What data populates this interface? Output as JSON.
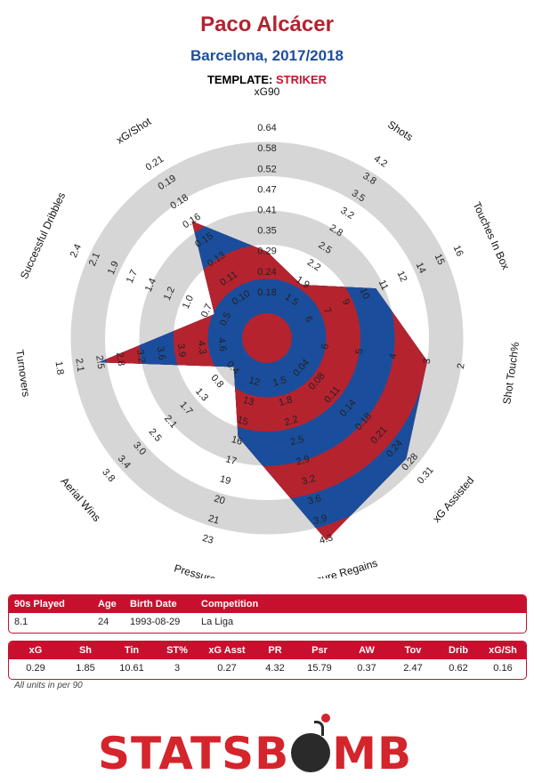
{
  "header": {
    "player": "Paco Alcácer",
    "team_season": "Barcelona, 2017/2018",
    "template_label": "TEMPLATE:",
    "template_value": "STRIKER"
  },
  "colors": {
    "red": "#b5232f",
    "blue": "#1a4e9c",
    "ring_grey": "#d6d6d6",
    "accent": "#c8102e"
  },
  "chart_data": {
    "type": "radar",
    "rings": 6,
    "axes": [
      {
        "name": "xG90",
        "ticks": [
          "0.18",
          "0.24",
          "0.29",
          "0.35",
          "0.41",
          "0.47",
          "0.52",
          "0.58",
          "0.64"
        ],
        "value": 0.29
      },
      {
        "name": "Shots",
        "ticks": [
          "1.5",
          "1.9",
          "2.2",
          "2.5",
          "2.8",
          "3.2",
          "3.5",
          "3.8",
          "4.2"
        ],
        "value": 1.85
      },
      {
        "name": "Touches In Box",
        "ticks": [
          "6",
          "7",
          "9",
          "10",
          "11",
          "12",
          "14",
          "15",
          "16"
        ],
        "value": 10.61
      },
      {
        "name": "Shot Touch%",
        "ticks": [
          "6",
          "5",
          "4",
          "3",
          "2"
        ],
        "value": 3
      },
      {
        "name": "xG Assisted",
        "ticks": [
          "0.04",
          "0.08",
          "0.11",
          "0.14",
          "0.18",
          "0.21",
          "0.24",
          "0.28",
          "0.31"
        ],
        "value": 0.27
      },
      {
        "name": "Pressure Regains",
        "ticks": [
          "1.5",
          "1.8",
          "2.2",
          "2.5",
          "2.9",
          "3.2",
          "3.6",
          "3.9",
          "4.3"
        ],
        "value": 4.32
      },
      {
        "name": "Pressures",
        "ticks": [
          "12",
          "13",
          "15",
          "16",
          "17",
          "19",
          "20",
          "21",
          "23"
        ],
        "value": 15.79
      },
      {
        "name": "Aerial Wins",
        "ticks": [
          "0.4",
          "0.8",
          "1.3",
          "1.7",
          "2.1",
          "2.5",
          "3.0",
          "3.4",
          "3.8"
        ],
        "value": 0.37
      },
      {
        "name": "Turnovers",
        "ticks": [
          "4.6",
          "4.3",
          "3.9",
          "3.6",
          "3.2",
          "2.8",
          "2.5",
          "2.1",
          "1.8"
        ],
        "value": 2.47
      },
      {
        "name": "Successful Dribbles",
        "ticks": [
          "0.5",
          "0.7",
          "1.0",
          "1.2",
          "1.4",
          "1.7",
          "1.9",
          "2.1",
          "2.4"
        ],
        "value": 0.62
      },
      {
        "name": "xG/Shot",
        "ticks": [
          "0.10",
          "0.11",
          "0.13",
          "0.15",
          "0.16",
          "0.18",
          "0.19",
          "0.21"
        ],
        "value": 0.16
      }
    ]
  },
  "info_table": {
    "headers": [
      "90s Played",
      "Age",
      "Birth Date",
      "Competition"
    ],
    "values": [
      "8.1",
      "24",
      "1993-08-29",
      "La Liga"
    ]
  },
  "stats_table": {
    "headers": [
      "xG",
      "Sh",
      "Tin",
      "ST%",
      "xG Asst",
      "PR",
      "Psr",
      "AW",
      "Tov",
      "Drib",
      "xG/Sh"
    ],
    "values": [
      "0.29",
      "1.85",
      "10.61",
      "3",
      "0.27",
      "4.32",
      "15.79",
      "0.37",
      "2.47",
      "0.62",
      "0.16"
    ]
  },
  "footnote": "All units in per 90",
  "logo": {
    "left": "STATSB",
    "right": "MB"
  }
}
